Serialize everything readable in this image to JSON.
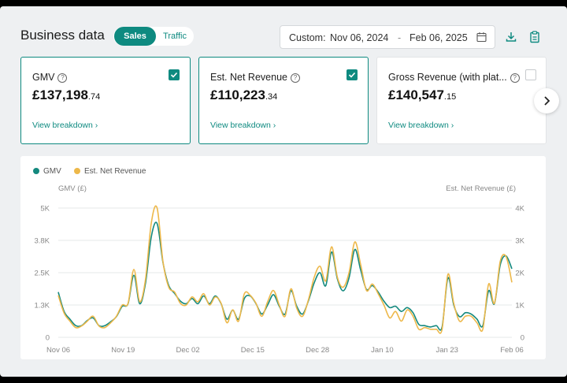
{
  "header": {
    "title": "Business data",
    "tabs": [
      {
        "label": "Sales",
        "active": true
      },
      {
        "label": "Traffic",
        "active": false
      }
    ],
    "date_prefix": "Custom:",
    "date_start": "Nov 06, 2024",
    "date_sep": "-",
    "date_end": "Feb 06, 2025"
  },
  "cards": [
    {
      "label": "GMV",
      "value_main": "£137,198",
      "value_dec": ".74",
      "link": "View breakdown",
      "checked": true
    },
    {
      "label": "Est. Net Revenue",
      "value_main": "£110,223",
      "value_dec": ".34",
      "link": "View breakdown",
      "checked": true
    },
    {
      "label": "Gross Revenue (with plat...",
      "value_main": "£140,547",
      "value_dec": ".15",
      "link": "View breakdown",
      "checked": false
    }
  ],
  "icons": {
    "calendar": "calendar-icon",
    "download": "download-icon",
    "report": "clipboard-icon",
    "next": "chevron-right-icon",
    "help": "help-circle-icon"
  },
  "colors": {
    "accent": "#0e8a80",
    "gmv": "#14897e",
    "net": "#edb84a"
  },
  "chart_data": {
    "type": "line",
    "legend": [
      "GMV",
      "Est. Net Revenue"
    ],
    "legend_position": "top-left",
    "y_left_label": "GMV (£)",
    "y_right_label": "Est. Net Revenue (£)",
    "y_left_ticks": [
      "5K",
      "3.8K",
      "2.5K",
      "1.3K",
      "0"
    ],
    "y_right_ticks": [
      "4K",
      "3K",
      "2K",
      "1K",
      "0"
    ],
    "y_left_range": [
      0,
      5000
    ],
    "y_right_range": [
      0,
      4000
    ],
    "x_ticks": [
      "Nov 06",
      "Nov 19",
      "Dec 02",
      "Dec 15",
      "Dec 28",
      "Jan 10",
      "Jan 23",
      "Feb 06"
    ],
    "x_start": "Nov 06",
    "x_end": "Feb 06",
    "grid": true,
    "series": [
      {
        "name": "GMV",
        "axis": "left",
        "values": [
          1750,
          1000,
          700,
          450,
          450,
          650,
          750,
          450,
          450,
          600,
          800,
          1200,
          1300,
          2400,
          1300,
          2100,
          3900,
          4400,
          2900,
          2000,
          1700,
          1400,
          1300,
          1500,
          1300,
          1600,
          1300,
          1600,
          1300,
          700,
          1050,
          700,
          1500,
          1600,
          1300,
          900,
          1250,
          1650,
          1200,
          900,
          1800,
          1200,
          900,
          1400,
          2100,
          2500,
          2000,
          3300,
          2250,
          1800,
          2300,
          3400,
          2600,
          1850,
          2000,
          1750,
          1400,
          1150,
          1200,
          1000,
          1150,
          950,
          500,
          450,
          400,
          450,
          400,
          2300,
          1250,
          800,
          950,
          900,
          700,
          450,
          1800,
          1300,
          2800,
          3150,
          2650
        ]
      },
      {
        "name": "Est. Net Revenue",
        "axis": "right",
        "values": [
          1300,
          750,
          500,
          300,
          350,
          500,
          650,
          350,
          300,
          450,
          650,
          1000,
          1050,
          2100,
          1100,
          1800,
          3550,
          4000,
          2350,
          1550,
          1400,
          1050,
          1000,
          1250,
          1100,
          1350,
          1000,
          1250,
          1050,
          450,
          850,
          500,
          1350,
          1300,
          1050,
          650,
          1100,
          1450,
          1000,
          650,
          1500,
          900,
          650,
          1150,
          1850,
          2200,
          1750,
          2800,
          1850,
          1550,
          2000,
          2950,
          2250,
          1450,
          1650,
          1350,
          1000,
          600,
          800,
          500,
          850,
          650,
          250,
          300,
          250,
          250,
          250,
          1950,
          1050,
          500,
          650,
          650,
          450,
          250,
          1650,
          1050,
          2350,
          2500,
          1700
        ]
      }
    ]
  }
}
